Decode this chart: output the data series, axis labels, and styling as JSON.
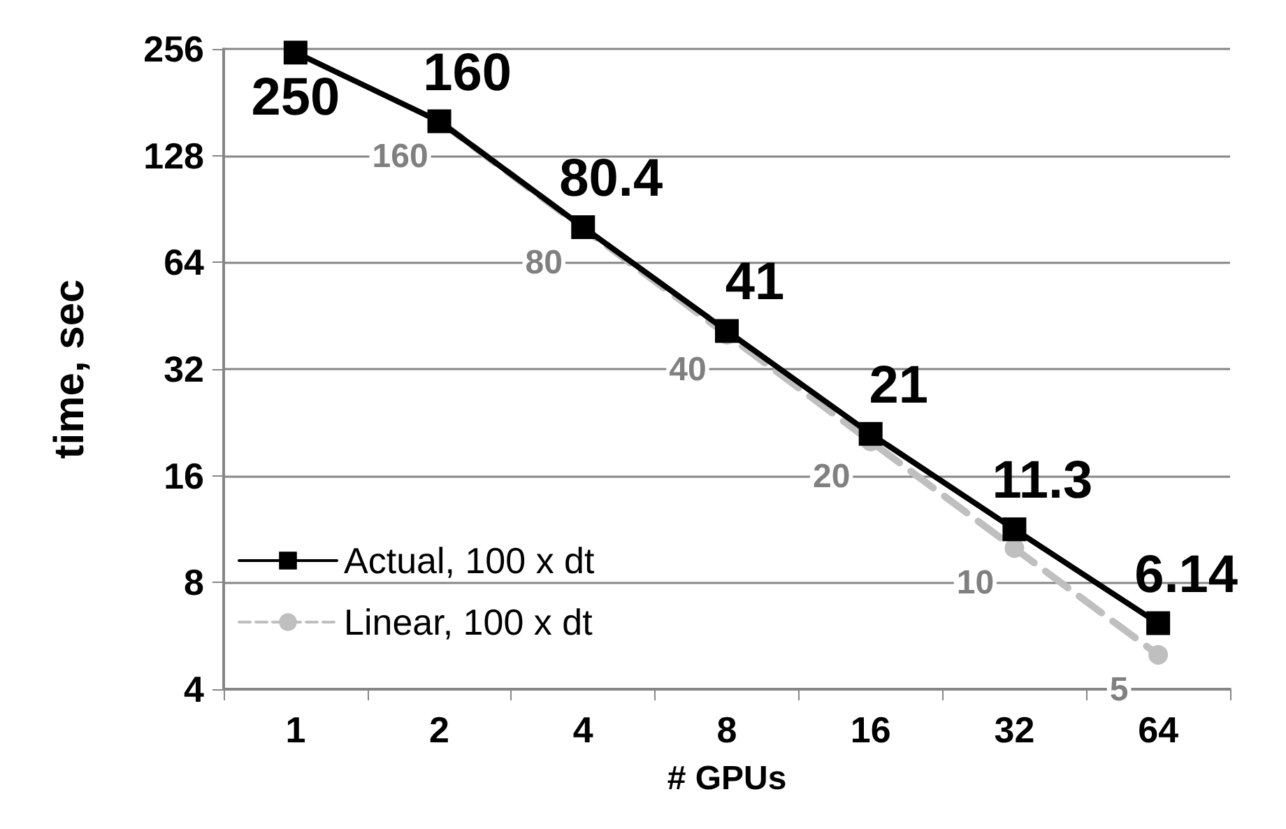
{
  "chart_data": {
    "type": "line",
    "xlabel": "# GPUs",
    "ylabel": "time, sec",
    "categories": [
      "1",
      "2",
      "4",
      "8",
      "16",
      "32",
      "64"
    ],
    "series": [
      {
        "name": "Actual, 100 x dt",
        "color": "#000000",
        "marker": "square",
        "line_style": "solid",
        "values": [
          250,
          160,
          80.4,
          41,
          21,
          11.3,
          6.14
        ]
      },
      {
        "name": "Linear, 100 x dt",
        "color": "#bfbfbf",
        "marker": "circle",
        "line_style": "dashed",
        "values": [
          null,
          160,
          80,
          40,
          20,
          10,
          5
        ]
      }
    ],
    "log": "y",
    "ylim": [
      4,
      256
    ],
    "yticks": [
      4,
      8,
      16,
      32,
      64,
      128,
      256
    ],
    "grid": "y",
    "legend": "bottom left",
    "data_labels": true
  }
}
